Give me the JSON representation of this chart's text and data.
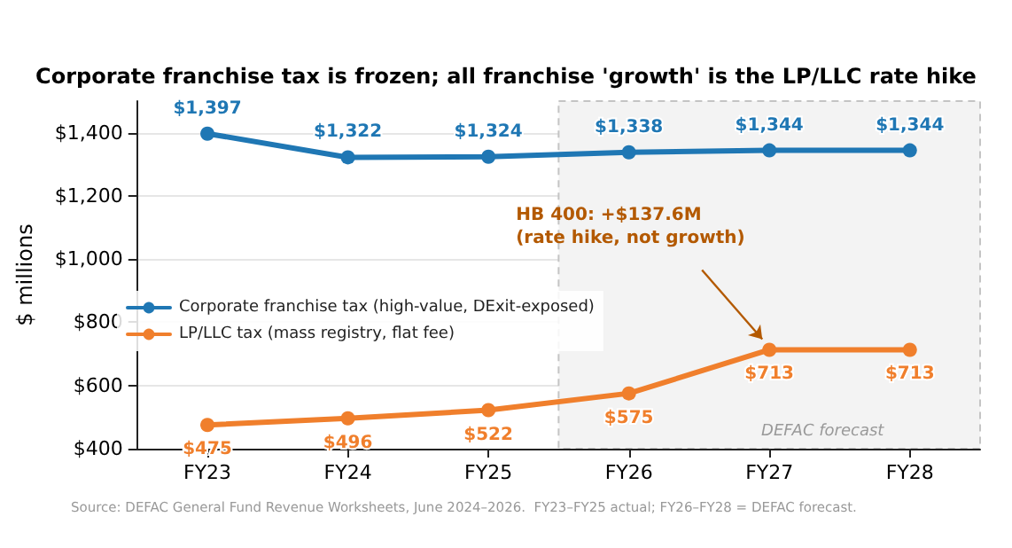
{
  "chart_data": {
    "type": "line",
    "title": "Corporate franchise tax is frozen; all franchise 'growth' is the LP/LLC rate hike",
    "categories": [
      "FY23",
      "FY24",
      "FY25",
      "FY26",
      "FY27",
      "FY28"
    ],
    "series": [
      {
        "name": "Corporate franchise tax (high-value, DExit-exposed)",
        "color": "#1f77b4",
        "values": [
          1397,
          1322,
          1324,
          1338,
          1344,
          1344
        ]
      },
      {
        "name": "LP/LLC tax (mass registry, flat fee)",
        "color": "#f07f2c",
        "values": [
          475,
          496,
          522,
          575,
          713,
          713
        ]
      }
    ],
    "ylabel": "$ millions",
    "ylim": [
      400,
      1500
    ],
    "yticks": [
      {
        "value": 400,
        "label": "$400"
      },
      {
        "value": 600,
        "label": "$600"
      },
      {
        "value": 800,
        "label": "$800"
      },
      {
        "value": 1000,
        "label": "$1,000"
      },
      {
        "value": 1200,
        "label": "$1,200"
      },
      {
        "value": 1400,
        "label": "$1,400"
      }
    ],
    "value_labels": [
      [
        "$1,397",
        "$1,322",
        "$1,324",
        "$1,338",
        "$1,344",
        "$1,344"
      ],
      [
        "$475",
        "$496",
        "$522",
        "$575",
        "$713",
        "$713"
      ]
    ],
    "bands": [
      {
        "axis": "x",
        "from": "FY26",
        "to": "FY28",
        "label": "DEFAC forecast",
        "color": "#f3f3f3"
      }
    ],
    "annotations": [
      {
        "text": "HB 400: +$137.6M\n(rate hike, not growth)",
        "x": "FY27",
        "y": 713
      },
      "Source: DEFAC General Fund Revenue Worksheets, June 2024–2026.  FY23–FY25 actual; FY26–FY28 = DEFAC forecast."
    ],
    "grid": "y",
    "legend": "left",
    "marker": "circle",
    "line_style": "solid"
  }
}
